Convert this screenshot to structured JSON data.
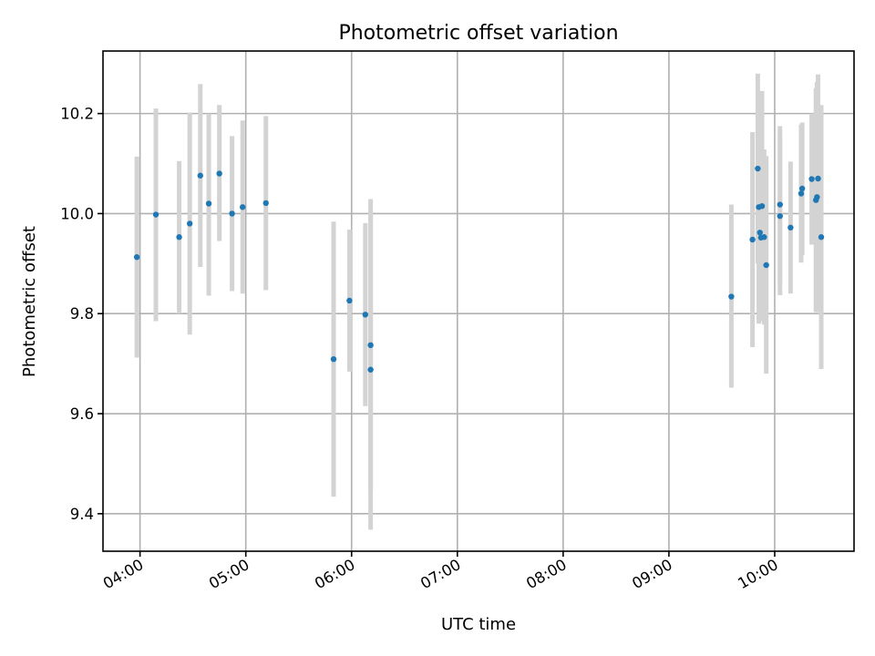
{
  "chart_data": {
    "type": "scatter",
    "title": "Photometric offset variation",
    "xlabel": "UTC time",
    "ylabel": "Photometric offset",
    "x_unit": "UTC time of day (hours)",
    "xlim": [
      3.65,
      10.75
    ],
    "ylim": [
      9.325,
      10.325
    ],
    "x_ticks": [
      {
        "value": 4,
        "label": "04:00"
      },
      {
        "value": 5,
        "label": "05:00"
      },
      {
        "value": 6,
        "label": "06:00"
      },
      {
        "value": 7,
        "label": "07:00"
      },
      {
        "value": 8,
        "label": "08:00"
      },
      {
        "value": 9,
        "label": "09:00"
      },
      {
        "value": 10,
        "label": "10:00"
      }
    ],
    "y_ticks": [
      {
        "value": 9.4,
        "label": "9.4"
      },
      {
        "value": 9.6,
        "label": "9.6"
      },
      {
        "value": 9.8,
        "label": "9.8"
      },
      {
        "value": 10.0,
        "label": "10.0"
      },
      {
        "value": 10.2,
        "label": "10.2"
      }
    ],
    "grid": true,
    "legend": "none",
    "colors": {
      "points": "#1f77b4",
      "errorbars": "#d3d3d3"
    },
    "points": [
      {
        "t": "03:58",
        "x": 3.97,
        "y": 9.913,
        "lo": 9.712,
        "hi": 10.114
      },
      {
        "t": "04:09",
        "x": 4.15,
        "y": 9.998,
        "lo": 9.785,
        "hi": 10.21
      },
      {
        "t": "04:22",
        "x": 4.37,
        "y": 9.953,
        "lo": 9.8,
        "hi": 10.105
      },
      {
        "t": "04:28",
        "x": 4.47,
        "y": 9.98,
        "lo": 9.758,
        "hi": 10.202
      },
      {
        "t": "04:34",
        "x": 4.57,
        "y": 10.076,
        "lo": 9.893,
        "hi": 10.259
      },
      {
        "t": "04:40",
        "x": 4.65,
        "y": 10.02,
        "lo": 9.836,
        "hi": 10.2
      },
      {
        "t": "04:45",
        "x": 4.75,
        "y": 10.08,
        "lo": 9.945,
        "hi": 10.217
      },
      {
        "t": "04:52",
        "x": 4.87,
        "y": 10.0,
        "lo": 9.845,
        "hi": 10.155
      },
      {
        "t": "04:58",
        "x": 4.97,
        "y": 10.013,
        "lo": 9.84,
        "hi": 10.186
      },
      {
        "t": "05:12",
        "x": 5.19,
        "y": 10.021,
        "lo": 9.847,
        "hi": 10.195
      },
      {
        "t": "05:50",
        "x": 5.83,
        "y": 9.709,
        "lo": 9.434,
        "hi": 9.984
      },
      {
        "t": "05:59",
        "x": 5.98,
        "y": 9.826,
        "lo": 9.684,
        "hi": 9.968
      },
      {
        "t": "06:08",
        "x": 6.13,
        "y": 9.798,
        "lo": 9.615,
        "hi": 9.981
      },
      {
        "t": "06:11",
        "x": 6.18,
        "y": 9.737,
        "lo": 9.445,
        "hi": 10.029
      },
      {
        "t": "06:11",
        "x": 6.18,
        "y": 9.688,
        "lo": 9.368,
        "hi": 10.008
      },
      {
        "t": "09:35",
        "x": 9.59,
        "y": 9.834,
        "lo": 9.652,
        "hi": 10.018
      },
      {
        "t": "09:47",
        "x": 9.79,
        "y": 9.948,
        "lo": 9.733,
        "hi": 10.163
      },
      {
        "t": "09:50",
        "x": 9.84,
        "y": 10.09,
        "lo": 9.9,
        "hi": 10.28
      },
      {
        "t": "09:51",
        "x": 9.85,
        "y": 10.013,
        "lo": 9.78,
        "hi": 10.245
      },
      {
        "t": "09:51",
        "x": 9.86,
        "y": 9.962,
        "lo": 9.79,
        "hi": 10.13
      },
      {
        "t": "09:52",
        "x": 9.87,
        "y": 9.952,
        "lo": 9.8,
        "hi": 10.11
      },
      {
        "t": "09:53",
        "x": 9.88,
        "y": 10.015,
        "lo": 9.785,
        "hi": 10.245
      },
      {
        "t": "09:54",
        "x": 9.9,
        "y": 9.953,
        "lo": 9.778,
        "hi": 10.128
      },
      {
        "t": "09:55",
        "x": 9.92,
        "y": 9.897,
        "lo": 9.68,
        "hi": 10.115
      },
      {
        "t": "10:03",
        "x": 10.05,
        "y": 10.018,
        "lo": 9.86,
        "hi": 10.175
      },
      {
        "t": "10:03",
        "x": 10.05,
        "y": 9.995,
        "lo": 9.837,
        "hi": 10.153
      },
      {
        "t": "10:09",
        "x": 10.15,
        "y": 9.972,
        "lo": 9.84,
        "hi": 10.104
      },
      {
        "t": "10:15",
        "x": 10.25,
        "y": 10.04,
        "lo": 9.902,
        "hi": 10.178
      },
      {
        "t": "10:16",
        "x": 10.26,
        "y": 10.05,
        "lo": 9.917,
        "hi": 10.182
      },
      {
        "t": "10:21",
        "x": 10.35,
        "y": 10.069,
        "lo": 9.938,
        "hi": 10.2
      },
      {
        "t": "10:23",
        "x": 10.39,
        "y": 10.027,
        "lo": 9.803,
        "hi": 10.251
      },
      {
        "t": "10:24",
        "x": 10.4,
        "y": 10.033,
        "lo": 9.803,
        "hi": 10.263
      },
      {
        "t": "10:25",
        "x": 10.41,
        "y": 10.07,
        "lo": 9.863,
        "hi": 10.278
      },
      {
        "t": "10:26",
        "x": 10.44,
        "y": 9.953,
        "lo": 9.689,
        "hi": 10.217
      }
    ]
  }
}
